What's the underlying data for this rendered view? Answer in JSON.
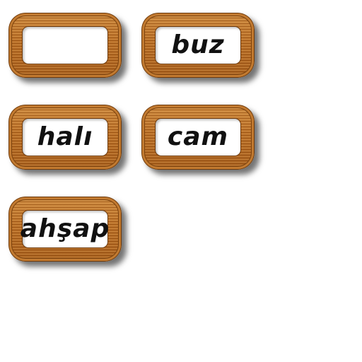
{
  "cards": [
    {
      "label": ""
    },
    {
      "label": "buz"
    },
    {
      "label": "halı"
    },
    {
      "label": "cam"
    },
    {
      "label": "ahşap"
    }
  ]
}
